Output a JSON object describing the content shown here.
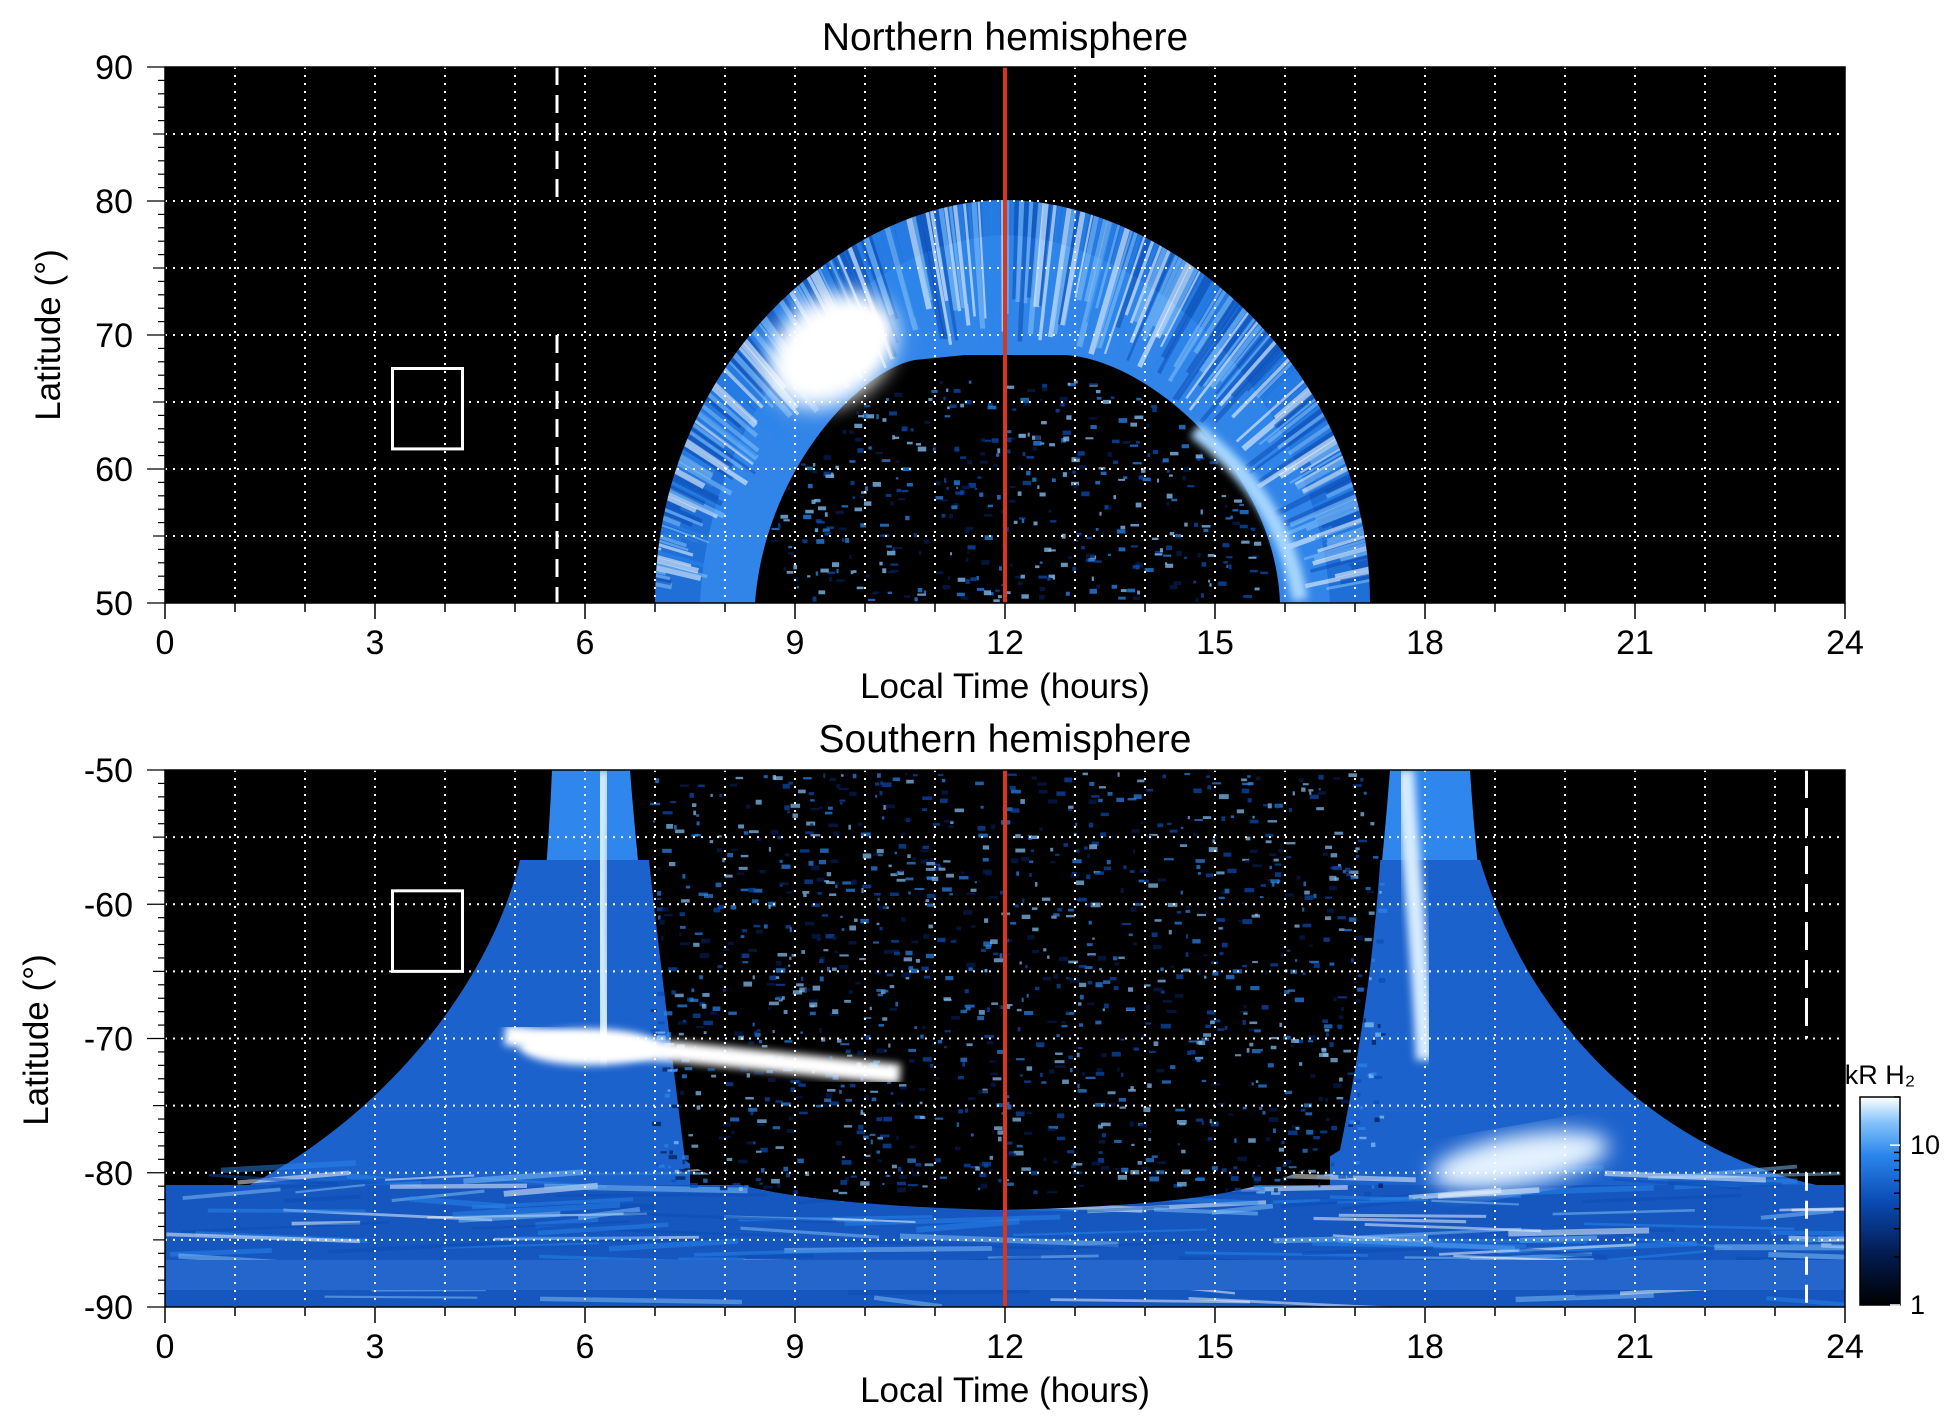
{
  "chart_data": [
    {
      "type": "heatmap",
      "title": "Northern hemisphere",
      "xlabel": "Local Time (hours)",
      "ylabel": "Latitude (°)",
      "xlim": [
        0,
        24
      ],
      "ylim": [
        50,
        90
      ],
      "x_ticks": [
        "0",
        "3",
        "6",
        "9",
        "12",
        "15",
        "18",
        "21",
        "24"
      ],
      "y_ticks": [
        "50",
        "60",
        "70",
        "80",
        "90"
      ],
      "grid": true,
      "noon_line_lt": 12,
      "dashed_line_lt": 5.6,
      "box": {
        "lt": [
          3.25,
          4.25
        ],
        "lat": [
          61.5,
          67.5
        ]
      },
      "oval": {
        "lt_range": [
          7.1,
          17.2
        ],
        "lat_top": 80,
        "inner_poleward_lat": 68.5,
        "bright_spot": {
          "lt": 9.8,
          "lat": 67
        }
      }
    },
    {
      "type": "heatmap",
      "title": "Southern hemisphere",
      "xlabel": "Local Time (hours)",
      "ylabel": "Latitude (°)",
      "xlim": [
        0,
        24
      ],
      "ylim": [
        -90,
        -50
      ],
      "x_ticks": [
        "0",
        "3",
        "6",
        "9",
        "12",
        "15",
        "18",
        "21",
        "24"
      ],
      "y_ticks": [
        "-50",
        "-60",
        "-70",
        "-80",
        "-90"
      ],
      "grid": true,
      "noon_line_lt": 12,
      "dashed_line_lt": 23.45,
      "box": {
        "lt": [
          3.25,
          4.25
        ],
        "lat": [
          -65,
          -59
        ]
      },
      "bright_arc": {
        "lt": [
          4.8,
          10.5
        ],
        "lat": [
          -70,
          -72.5
        ]
      },
      "colorbar": {
        "label": "kR H₂",
        "scale": "log",
        "ticks": [
          "1",
          "10"
        ],
        "range": [
          1,
          20
        ]
      }
    }
  ],
  "colors": {
    "background": "#000000",
    "noon_line": "#d8371e",
    "grid": "#ffffff",
    "colormap": [
      "#000000",
      "#031c52",
      "#0a4cb4",
      "#2a86ec",
      "#86c4fa",
      "#ffffff"
    ]
  }
}
